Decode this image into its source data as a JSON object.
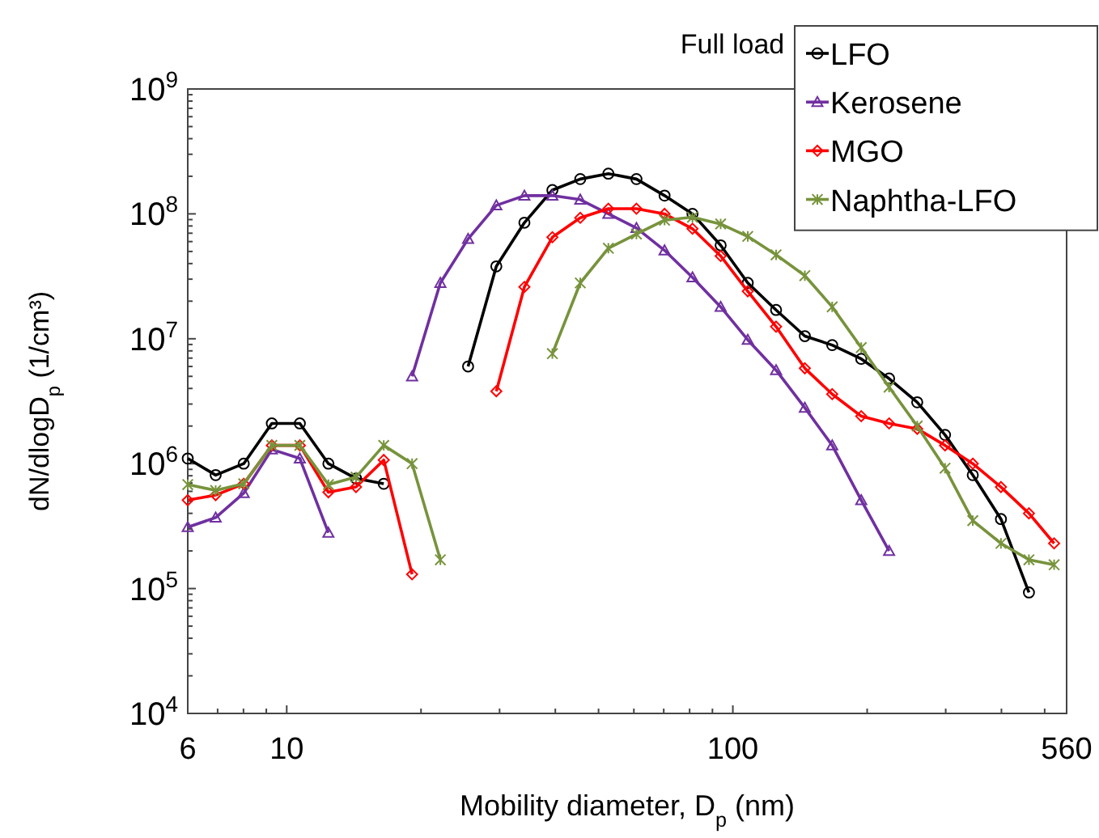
{
  "chart_data": {
    "type": "line",
    "title": "Full load",
    "xlabel": "Mobility diameter, D$_{p}$ (nm)",
    "ylabel": "dN/dlogD$_{p}$ (1/cm³)",
    "log": "xy",
    "xlim": [
      6,
      560
    ],
    "ylim": [
      10000,
      1000000000
    ],
    "xticks": [
      6,
      {
        "value": 7,
        "label": null
      },
      {
        "value": 8,
        "label": null
      },
      {
        "value": 9,
        "label": null
      },
      10,
      {
        "value": 20,
        "label": null
      },
      {
        "value": 30,
        "label": null
      },
      {
        "value": 40,
        "label": null
      },
      {
        "value": 50,
        "label": null
      },
      {
        "value": 60,
        "label": null
      },
      {
        "value": 70,
        "label": null
      },
      {
        "value": 80,
        "label": null
      },
      {
        "value": 90,
        "label": null
      },
      100,
      {
        "value": 200,
        "label": null
      },
      {
        "value": 300,
        "label": null
      },
      {
        "value": 400,
        "label": null
      },
      {
        "value": 500,
        "label": null
      },
      560
    ],
    "yticks": [
      {
        "value": 10000,
        "label": "10$^{4}$"
      },
      {
        "value": 20000,
        "label": null
      },
      {
        "value": 30000,
        "label": null
      },
      {
        "value": 40000,
        "label": null
      },
      {
        "value": 50000,
        "label": null
      },
      {
        "value": 60000,
        "label": null
      },
      {
        "value": 70000,
        "label": null
      },
      {
        "value": 80000,
        "label": null
      },
      {
        "value": 90000,
        "label": null
      },
      {
        "value": 100000,
        "label": "10$^{5}$"
      },
      {
        "value": 200000,
        "label": null
      },
      {
        "value": 300000,
        "label": null
      },
      {
        "value": 400000,
        "label": null
      },
      {
        "value": 500000,
        "label": null
      },
      {
        "value": 600000,
        "label": null
      },
      {
        "value": 700000,
        "label": null
      },
      {
        "value": 800000,
        "label": null
      },
      {
        "value": 900000,
        "label": null
      },
      {
        "value": 1000000,
        "label": "10$^{6}$"
      },
      {
        "value": 2000000,
        "label": null
      },
      {
        "value": 3000000,
        "label": null
      },
      {
        "value": 4000000,
        "label": null
      },
      {
        "value": 5000000,
        "label": null
      },
      {
        "value": 6000000,
        "label": null
      },
      {
        "value": 7000000,
        "label": null
      },
      {
        "value": 8000000,
        "label": null
      },
      {
        "value": 9000000,
        "label": null
      },
      {
        "value": 10000000,
        "label": "10$^{7}$"
      },
      {
        "value": 20000000,
        "label": null
      },
      {
        "value": 30000000,
        "label": null
      },
      {
        "value": 40000000,
        "label": null
      },
      {
        "value": 50000000,
        "label": null
      },
      {
        "value": 60000000,
        "label": null
      },
      {
        "value": 70000000,
        "label": null
      },
      {
        "value": 80000000,
        "label": null
      },
      {
        "value": 90000000,
        "label": null
      },
      {
        "value": 100000000,
        "label": "10$^{8}$"
      },
      {
        "value": 200000000,
        "label": null
      },
      {
        "value": 300000000,
        "label": null
      },
      {
        "value": 400000000,
        "label": null
      },
      {
        "value": 500000000,
        "label": null
      },
      {
        "value": 600000000,
        "label": null
      },
      {
        "value": 700000000,
        "label": null
      },
      {
        "value": 800000000,
        "label": null
      },
      {
        "value": 900000000,
        "label": null
      },
      {
        "value": 1000000000,
        "label": "10$^{9}$"
      }
    ],
    "x": [
      6.0,
      6.93,
      8.01,
      9.26,
      10.7,
      12.4,
      14.3,
      16.5,
      19.1,
      22.1,
      25.5,
      29.5,
      34.1,
      39.4,
      45.5,
      52.6,
      60.8,
      70.3,
      81.2,
      93.9,
      108,
      125,
      145,
      167,
      194,
      224,
      259,
      299,
      345,
      399,
      461,
      525
    ],
    "legend": "top right",
    "line_style": "solid",
    "series": [
      {
        "name": "LFO",
        "color": "#000000",
        "marker": "circle",
        "values": [
          1100000,
          810000,
          1000000,
          2100000,
          2100000,
          1000000,
          760000,
          690000,
          null,
          null,
          6000000,
          38000000,
          85000000,
          155000000,
          190000000,
          210000000,
          190000000,
          140000000,
          100000000,
          56000000,
          28000000,
          17000000,
          10500000,
          8900000,
          6900000,
          4800000,
          3100000,
          1700000,
          810000,
          360000,
          93000,
          null
        ]
      },
      {
        "name": "Kerosene",
        "color": "#7030a0",
        "marker": "triangle",
        "values": [
          310000,
          370000,
          580000,
          1300000,
          1100000,
          280000,
          null,
          null,
          5000000,
          28000000,
          63000000,
          117000000,
          140000000,
          140000000,
          130000000,
          100000000,
          77000000,
          51000000,
          31000000,
          18000000,
          9800000,
          5600000,
          2800000,
          1400000,
          510000,
          200000,
          null,
          null,
          null,
          null,
          null,
          null
        ]
      },
      {
        "name": "MGO",
        "color": "#ff0000",
        "marker": "diamond",
        "values": [
          510000,
          560000,
          690000,
          1400000,
          1400000,
          590000,
          650000,
          1070000,
          130000,
          null,
          null,
          3800000,
          26000000,
          65000000,
          93000000,
          110000000,
          110000000,
          100000000,
          76000000,
          46000000,
          24000000,
          12500000,
          5800000,
          3600000,
          2400000,
          2100000,
          1900000,
          1400000,
          1000000,
          650000,
          400000,
          230000
        ]
      },
      {
        "name": "Naphtha-LFO",
        "color": "#77933c",
        "marker": "cross",
        "values": [
          680000,
          610000,
          690000,
          1400000,
          1400000,
          680000,
          780000,
          1400000,
          1000000,
          170000,
          null,
          null,
          null,
          7600000,
          28000000,
          53000000,
          69000000,
          89000000,
          94000000,
          83000000,
          66000000,
          47000000,
          32000000,
          18000000,
          8500000,
          4100000,
          2000000,
          920000,
          350000,
          230000,
          170000,
          155000
        ]
      }
    ]
  }
}
